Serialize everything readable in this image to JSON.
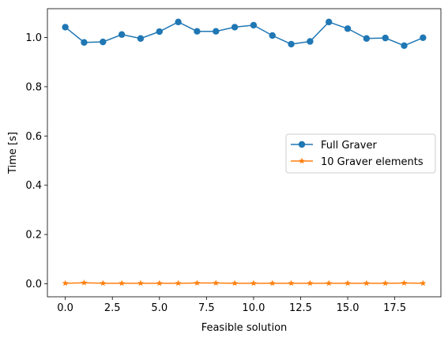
{
  "chart_data": {
    "type": "line",
    "title": "",
    "xlabel": "Feasible solution",
    "ylabel": "Time [s]",
    "xlim": [
      -0.95,
      19.95
    ],
    "ylim": [
      -0.053,
      1.117
    ],
    "xticks": [
      0.0,
      2.5,
      5.0,
      7.5,
      10.0,
      12.5,
      15.0,
      17.5
    ],
    "xtick_labels": [
      "0.0",
      "2.5",
      "5.0",
      "7.5",
      "10.0",
      "12.5",
      "15.0",
      "17.5"
    ],
    "yticks": [
      0.0,
      0.2,
      0.4,
      0.6,
      0.8,
      1.0
    ],
    "ytick_labels": [
      "0.0",
      "0.2",
      "0.4",
      "0.6",
      "0.8",
      "1.0"
    ],
    "legend_position": "center-right",
    "x": [
      0,
      1,
      2,
      3,
      4,
      5,
      6,
      7,
      8,
      9,
      10,
      11,
      12,
      13,
      14,
      15,
      16,
      17,
      18,
      19
    ],
    "series": [
      {
        "name": "Full Graver",
        "color": "#1f77b4",
        "marker": "circle",
        "values": [
          1.042,
          0.98,
          0.982,
          1.012,
          0.996,
          1.024,
          1.063,
          1.025,
          1.025,
          1.042,
          1.05,
          1.008,
          0.973,
          0.984,
          1.063,
          1.036,
          0.996,
          0.998,
          0.967,
          0.999
        ]
      },
      {
        "name": "10 Graver elements",
        "color": "#ff7f0e",
        "marker": "star",
        "values": [
          0.002,
          0.004,
          0.002,
          0.002,
          0.002,
          0.002,
          0.002,
          0.003,
          0.003,
          0.002,
          0.002,
          0.002,
          0.002,
          0.002,
          0.002,
          0.002,
          0.002,
          0.002,
          0.003,
          0.002
        ]
      }
    ]
  }
}
